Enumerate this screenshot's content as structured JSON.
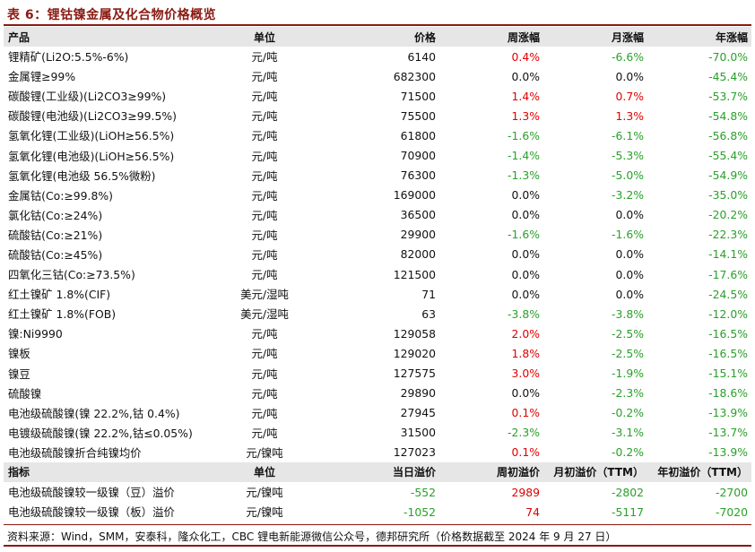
{
  "title": "表 6：锂钴镍金属及化合物价格概览",
  "price_header": [
    "产品",
    "单位",
    "价格",
    "周涨幅",
    "月涨幅",
    "年涨幅"
  ],
  "price_rows": [
    {
      "name": "锂精矿(Li2O:5.5%-6%)",
      "unit": "元/吨",
      "price": "6140",
      "w": "0.4%",
      "m": "-6.6%",
      "y": "-70.0%"
    },
    {
      "name": "金属锂≥99%",
      "unit": "元/吨",
      "price": "682300",
      "w": "0.0%",
      "m": "0.0%",
      "y": "-45.4%"
    },
    {
      "name": "碳酸锂(工业级)(Li2CO3≥99%)",
      "unit": "元/吨",
      "price": "71500",
      "w": "1.4%",
      "m": "0.7%",
      "y": "-53.7%"
    },
    {
      "name": "碳酸锂(电池级)(Li2CO3≥99.5%)",
      "unit": "元/吨",
      "price": "75500",
      "w": "1.3%",
      "m": "1.3%",
      "y": "-54.8%"
    },
    {
      "name": "氢氧化锂(工业级)(LiOH≥56.5%)",
      "unit": "元/吨",
      "price": "61800",
      "w": "-1.6%",
      "m": "-6.1%",
      "y": "-56.8%"
    },
    {
      "name": "氢氧化锂(电池级)(LiOH≥56.5%)",
      "unit": "元/吨",
      "price": "70900",
      "w": "-1.4%",
      "m": "-5.3%",
      "y": "-55.4%"
    },
    {
      "name": "氢氧化锂(电池级 56.5%微粉)",
      "unit": "元/吨",
      "price": "76300",
      "w": "-1.3%",
      "m": "-5.0%",
      "y": "-54.9%"
    },
    {
      "name": "金属钴(Co:≥99.8%)",
      "unit": "元/吨",
      "price": "169000",
      "w": "0.0%",
      "m": "-3.2%",
      "y": "-35.0%"
    },
    {
      "name": "氯化钴(Co:≥24%)",
      "unit": "元/吨",
      "price": "36500",
      "w": "0.0%",
      "m": "0.0%",
      "y": "-20.2%"
    },
    {
      "name": "硫酸钴(Co:≥21%)",
      "unit": "元/吨",
      "price": "29900",
      "w": "-1.6%",
      "m": "-1.6%",
      "y": "-22.3%"
    },
    {
      "name": "硫酸钴(Co:≥45%)",
      "unit": "元/吨",
      "price": "82000",
      "w": "0.0%",
      "m": "0.0%",
      "y": "-14.1%"
    },
    {
      "name": "四氧化三钴(Co:≥73.5%)",
      "unit": "元/吨",
      "price": "121500",
      "w": "0.0%",
      "m": "0.0%",
      "y": "-17.6%"
    },
    {
      "name": "红土镍矿 1.8%(CIF)",
      "unit": "美元/湿吨",
      "price": "71",
      "w": "0.0%",
      "m": "0.0%",
      "y": "-24.5%"
    },
    {
      "name": "红土镍矿 1.8%(FOB)",
      "unit": "美元/湿吨",
      "price": "63",
      "w": "-3.8%",
      "m": "-3.8%",
      "y": "-12.0%"
    },
    {
      "name": "镍:Ni9990",
      "unit": "元/吨",
      "price": "129058",
      "w": "2.0%",
      "m": "-2.5%",
      "y": "-16.5%"
    },
    {
      "name": "镍板",
      "unit": "元/吨",
      "price": "129020",
      "w": "1.8%",
      "m": "-2.5%",
      "y": "-16.5%"
    },
    {
      "name": "镍豆",
      "unit": "元/吨",
      "price": "127575",
      "w": "3.0%",
      "m": "-1.9%",
      "y": "-15.1%"
    },
    {
      "name": "硫酸镍",
      "unit": "元/吨",
      "price": "29890",
      "w": "0.0%",
      "m": "-2.3%",
      "y": "-18.6%"
    },
    {
      "name": "电池级硫酸镍(镍 22.2%,钴 0.4%)",
      "unit": "元/吨",
      "price": "27945",
      "w": "0.1%",
      "m": "-0.2%",
      "y": "-13.9%"
    },
    {
      "name": "电镀级硫酸镍(镍 22.2%,钴≤0.05%)",
      "unit": "元/吨",
      "price": "31500",
      "w": "-2.3%",
      "m": "-3.1%",
      "y": "-13.7%"
    },
    {
      "name": "电池级硫酸镍折合纯镍均价",
      "unit": "元/镍吨",
      "price": "127023",
      "w": "0.1%",
      "m": "-0.2%",
      "y": "-13.9%"
    }
  ],
  "premium_header": [
    "指标",
    "单位",
    "当日溢价",
    "周初溢价",
    "月初溢价（TTM）",
    "年初溢价（TTM）"
  ],
  "premium_rows": [
    {
      "name": "电池级硫酸镍较一级镍（豆）溢价",
      "unit": "元/镍吨",
      "price": "-552",
      "w": "2989",
      "m": "-2802",
      "y": "-2700"
    },
    {
      "name": "电池级硫酸镍较一级镍（板）溢价",
      "unit": "元/镍吨",
      "price": "-1052",
      "w": "74",
      "m": "-5117",
      "y": "-7020"
    }
  ],
  "source": "资料来源：Wind，SMM，安泰科，隆众化工，CBC 锂电新能源微信公众号，德邦研究所（价格数据截至 2024 年 9 月 27 日）",
  "colors": {
    "title": "#8a1a12",
    "positive": "#e00000",
    "negative": "#2aa02a",
    "header_bg": "#e6e6e6"
  }
}
